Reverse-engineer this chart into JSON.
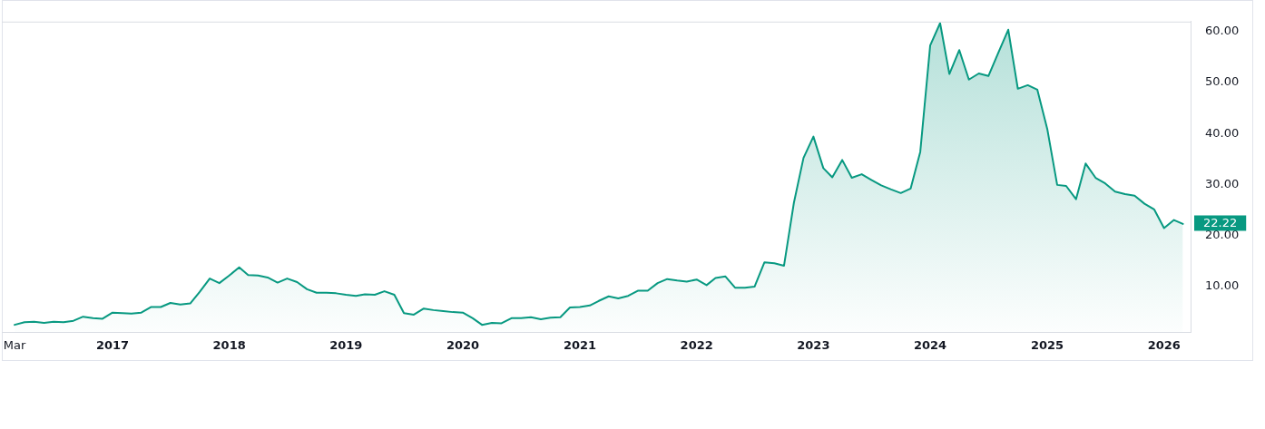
{
  "chart_data": {
    "type": "area",
    "x": [
      "2016-03",
      "2016-04",
      "2016-05",
      "2016-06",
      "2016-07",
      "2016-08",
      "2016-09",
      "2016-10",
      "2016-11",
      "2016-12",
      "2017-01",
      "2017-02",
      "2017-03",
      "2017-04",
      "2017-05",
      "2017-06",
      "2017-07",
      "2017-08",
      "2017-09",
      "2017-10",
      "2017-11",
      "2017-12",
      "2018-01",
      "2018-02",
      "2018-03",
      "2018-04",
      "2018-05",
      "2018-06",
      "2018-07",
      "2018-08",
      "2018-09",
      "2018-10",
      "2018-11",
      "2018-12",
      "2019-01",
      "2019-02",
      "2019-03",
      "2019-04",
      "2019-05",
      "2019-06",
      "2019-07",
      "2019-08",
      "2019-09",
      "2019-10",
      "2019-11",
      "2019-12",
      "2020-01",
      "2020-02",
      "2020-03",
      "2020-04",
      "2020-05",
      "2020-06",
      "2020-07",
      "2020-08",
      "2020-09",
      "2020-10",
      "2020-11",
      "2020-12",
      "2021-01",
      "2021-02",
      "2021-03",
      "2021-04",
      "2021-05",
      "2021-06",
      "2021-07",
      "2021-08",
      "2021-09",
      "2021-10",
      "2021-11",
      "2021-12",
      "2022-01",
      "2022-02",
      "2022-03",
      "2022-04",
      "2022-05",
      "2022-06",
      "2022-07",
      "2022-08",
      "2022-09",
      "2022-10",
      "2022-11",
      "2022-12",
      "2023-01",
      "2023-02",
      "2023-03",
      "2023-04",
      "2023-05",
      "2023-06",
      "2023-07",
      "2023-08",
      "2023-09",
      "2023-10",
      "2023-11",
      "2023-12",
      "2024-01",
      "2024-02",
      "2024-03",
      "2024-04",
      "2024-05",
      "2024-06",
      "2024-07",
      "2024-08",
      "2024-09",
      "2024-10",
      "2024-11",
      "2024-12",
      "2025-01",
      "2025-02",
      "2025-03",
      "2025-04",
      "2025-05",
      "2025-06",
      "2025-07",
      "2025-08",
      "2025-09",
      "2025-10",
      "2025-11",
      "2025-12",
      "2026-01",
      "2026-02",
      "2026-03"
    ],
    "values": [
      2.4,
      2.9,
      3.0,
      2.8,
      3.0,
      2.9,
      3.2,
      4.0,
      3.7,
      3.6,
      4.8,
      4.7,
      4.6,
      4.8,
      5.9,
      5.9,
      6.7,
      6.4,
      6.6,
      8.9,
      11.5,
      10.6,
      12.1,
      13.7,
      12.2,
      12.1,
      11.7,
      10.7,
      11.5,
      10.8,
      9.4,
      8.7,
      8.7,
      8.6,
      8.3,
      8.1,
      8.4,
      8.3,
      9.0,
      8.3,
      4.7,
      4.4,
      5.6,
      5.3,
      5.1,
      4.9,
      4.8,
      3.7,
      2.4,
      2.8,
      2.7,
      3.7,
      3.7,
      3.9,
      3.5,
      3.8,
      3.9,
      5.8,
      5.9,
      6.2,
      7.1,
      8.0,
      7.6,
      8.1,
      9.1,
      9.1,
      10.6,
      11.4,
      11.1,
      10.9,
      11.3,
      10.2,
      11.6,
      11.9,
      9.7,
      9.7,
      9.9,
      14.7,
      14.5,
      14.0,
      26.4,
      35.2,
      39.4,
      33.2,
      31.4,
      34.8,
      31.3,
      32.0,
      30.9,
      29.8,
      29.0,
      28.3,
      29.2,
      36.4,
      57.3,
      61.7,
      51.7,
      56.4,
      50.6,
      51.8,
      51.3,
      55.9,
      60.4,
      48.8,
      49.5,
      48.6,
      40.9,
      29.9,
      29.7,
      27.1,
      34.1,
      31.3,
      30.2,
      28.6,
      28.1,
      27.8,
      26.2,
      25.1,
      21.4,
      23.0,
      22.22
    ],
    "color": "#089981",
    "value_labels": [
      null,
      null,
      null,
      null,
      null,
      null,
      null,
      null,
      null,
      null,
      null,
      null,
      null,
      null,
      null,
      null,
      null,
      null,
      null,
      null,
      null,
      null,
      null,
      null,
      null,
      null,
      null,
      null,
      null,
      null,
      null,
      null,
      null,
      null,
      null,
      null,
      null,
      null,
      null,
      null,
      null,
      null,
      null,
      null,
      null,
      null,
      null,
      null,
      null,
      null,
      null,
      null,
      null,
      null,
      null,
      null,
      null,
      null,
      null,
      null,
      null,
      null,
      null,
      null,
      null,
      null,
      null,
      null,
      null,
      null,
      null,
      null,
      null,
      null,
      null,
      null,
      null,
      null,
      null,
      null,
      null,
      null,
      null,
      null,
      null,
      null,
      null,
      null,
      null,
      null,
      null,
      null,
      null,
      null,
      null,
      null,
      null,
      null,
      null,
      null,
      null,
      null,
      null,
      null,
      null,
      null,
      null,
      null,
      null,
      null,
      null,
      null,
      null,
      null,
      null,
      null,
      null,
      null,
      null,
      null,
      "22.22"
    ],
    "xlim": [
      "2016-01-21",
      "2026-03-25"
    ],
    "xticks": [
      {
        "value": "2016-03",
        "label": "Mar"
      },
      "2017",
      "2018",
      "2019",
      "2020",
      "2021",
      "2022",
      "2023",
      "2024",
      "2025",
      "2026"
    ],
    "ylim": [
      1,
      62
    ],
    "yticks": [
      {
        "value": 10,
        "label": "10.00"
      },
      {
        "value": 20,
        "label": "20.00"
      },
      {
        "value": 30,
        "label": "30.00"
      },
      {
        "value": 40,
        "label": "40.00"
      },
      {
        "value": 50,
        "label": "50.00"
      },
      {
        "value": 60,
        "label": "60.00"
      }
    ]
  }
}
